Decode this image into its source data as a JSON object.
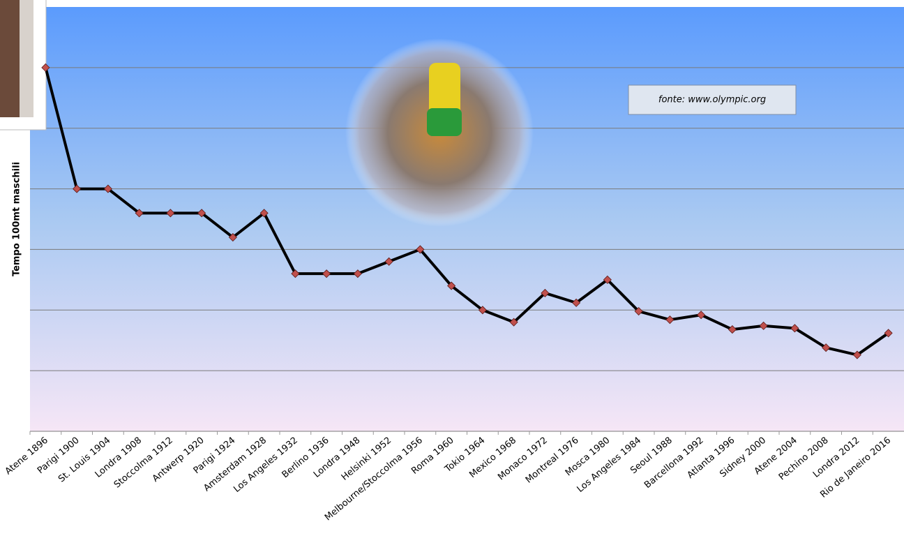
{
  "chart_data": {
    "type": "line",
    "y_label": "Tempo 100mt maschili",
    "annotation": "fonte: www.olympic.org",
    "categories": [
      "Atene 1896",
      "Parigi 1900",
      "St. Louis 1904",
      "Londra 1908",
      "Stoccolma 1912",
      "Antwerp 1920",
      "Parigi 1924",
      "Amsterdam 1928",
      "Los Angeles 1932",
      "Berlino 1936",
      "Londra 1948",
      "Helsinki 1952",
      "Melbourne/Stoccolma 1956",
      "Roma 1960",
      "Tokio 1964",
      "Mexico 1968",
      "Monaco 1972",
      "Montreal 1976",
      "Mosca 1980",
      "Los Angeles 1984",
      "Seoul 1988",
      "Barcellona 1992",
      "Atlanta 1996",
      "Sidney 2000",
      "Atene 2004",
      "Pechino 2008",
      "Londra 2012",
      "Rio de Janeiro 2016"
    ],
    "series": [
      {
        "name": "Tempo 100mt maschili",
        "color": "#000000",
        "marker_color": "#c0504d",
        "values": [
          12.0,
          11.0,
          11.0,
          10.8,
          10.8,
          10.8,
          10.6,
          10.8,
          10.3,
          10.3,
          10.3,
          10.4,
          10.5,
          10.2,
          10.0,
          9.9,
          10.14,
          10.06,
          10.25,
          9.99,
          9.92,
          9.96,
          9.84,
          9.87,
          9.85,
          9.69,
          9.63,
          9.81
        ]
      }
    ],
    "ylim": [
      9.0,
      12.5
    ],
    "yticks": [
      9.0,
      9.5,
      10.0,
      10.5,
      11.0,
      11.5,
      12.0
    ],
    "grid": true,
    "show_ytick_labels": false
  }
}
